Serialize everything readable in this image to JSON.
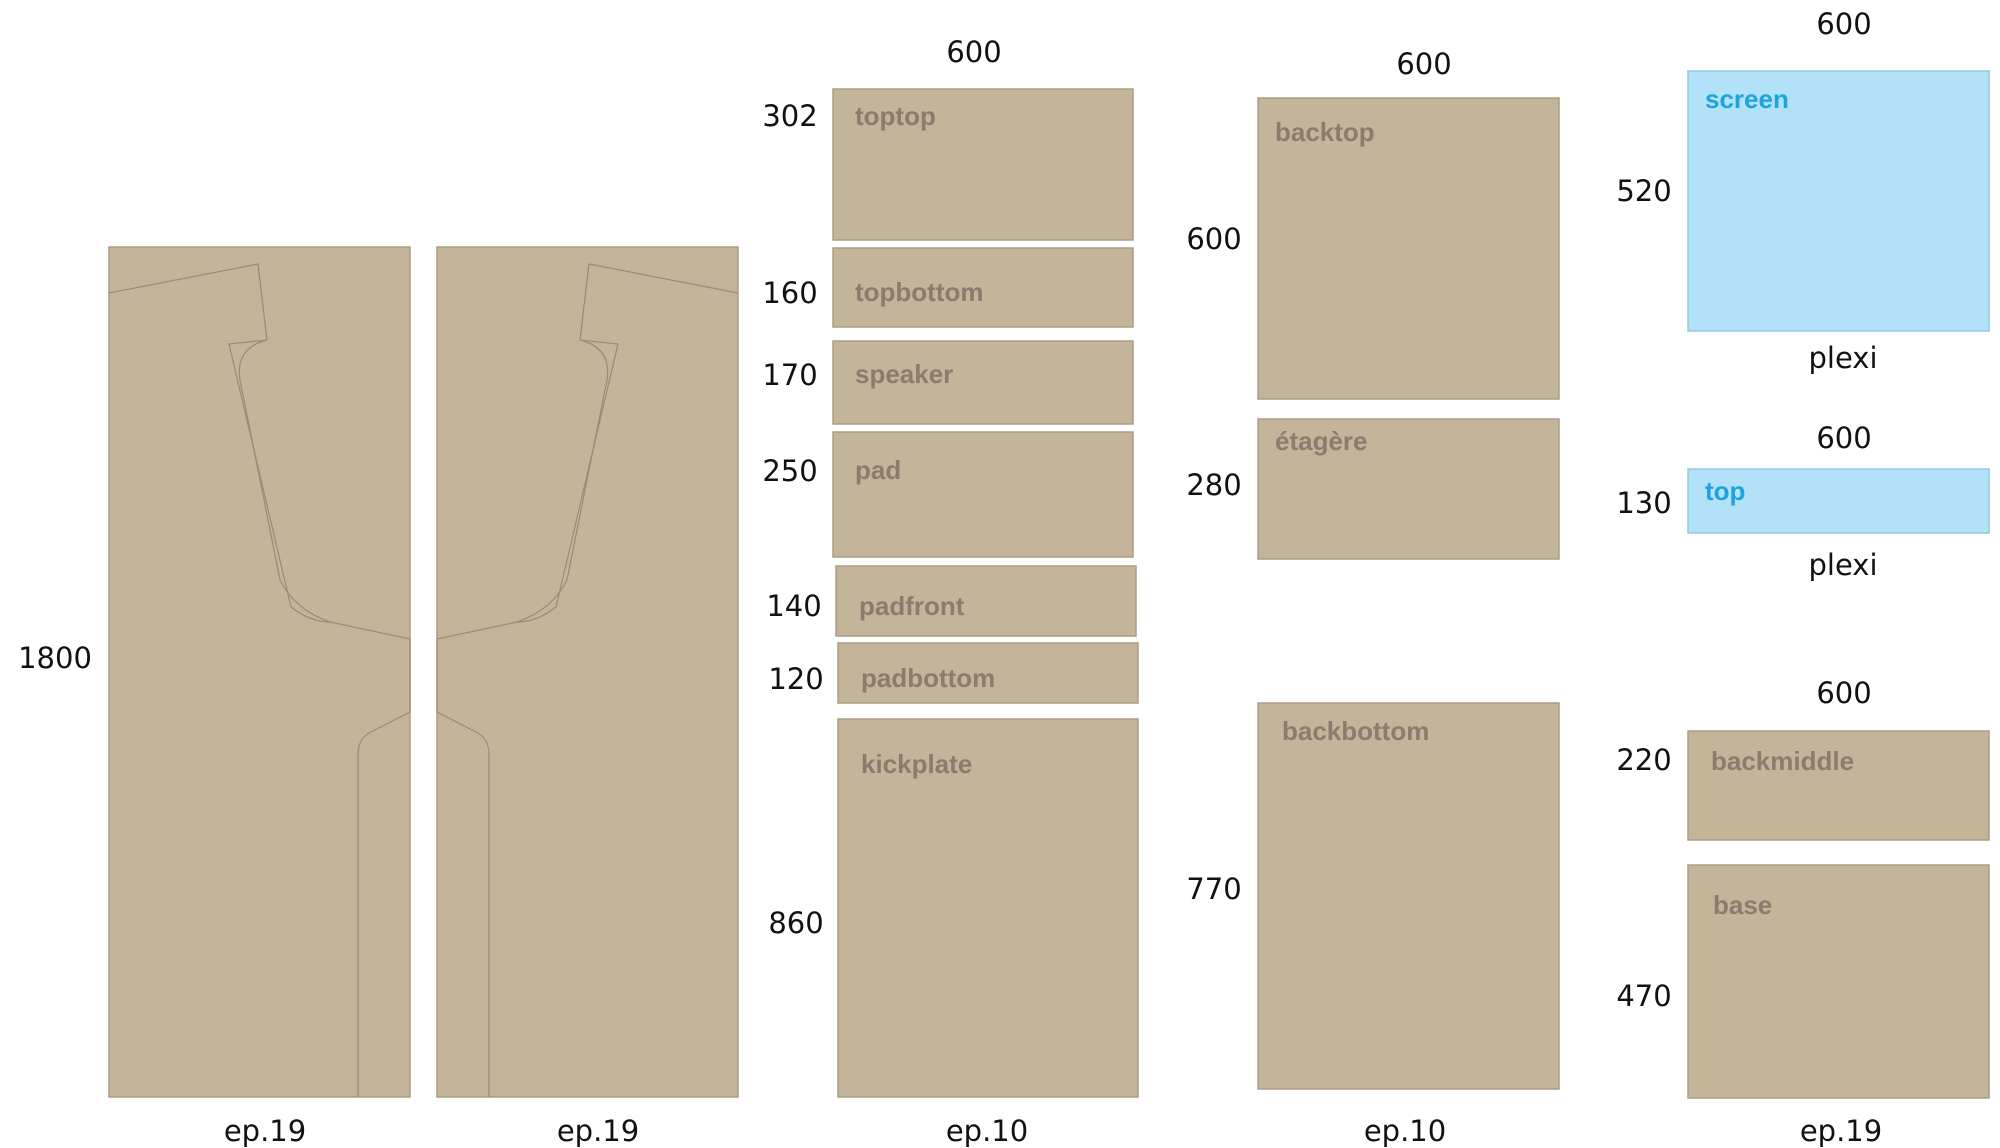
{
  "colors": {
    "wood": "#c3b49a",
    "wood_stroke": "#ab9d84",
    "wood_label": "#8c7c6e",
    "plexi": "#b3e1f7",
    "plexi_stroke": "#93c9e4",
    "plexi_label": "#1ea4dc",
    "side_line": "#9a8b74"
  },
  "sides": {
    "height_label": "1800",
    "left_thickness": "ep.19",
    "right_thickness": "ep.19"
  },
  "column1": {
    "width_label": "600",
    "thickness": "ep.10",
    "panels": [
      {
        "name": "toptop",
        "height_label": "302"
      },
      {
        "name": "topbottom",
        "height_label": "160"
      },
      {
        "name": "speaker",
        "height_label": "170"
      },
      {
        "name": "pad",
        "height_label": "250"
      },
      {
        "name": "padfront",
        "height_label": "140"
      },
      {
        "name": "padbottom",
        "height_label": "120"
      },
      {
        "name": "kickplate",
        "height_label": "860"
      }
    ]
  },
  "column2": {
    "width_label": "600",
    "thickness": "ep.10",
    "panels": [
      {
        "name": "backtop",
        "height_label": "600"
      },
      {
        "name": "étagère",
        "height_label": "280"
      },
      {
        "name": "backbottom",
        "height_label": "770"
      }
    ]
  },
  "column3": {
    "screen": {
      "width_label": "600",
      "name": "screen",
      "height_label": "520",
      "material": "plexi"
    },
    "top": {
      "width_label": "600",
      "name": "top",
      "height_label": "130",
      "material": "plexi"
    },
    "wood_width_label": "600",
    "wood_panels": [
      {
        "name": "backmiddle",
        "height_label": "220"
      },
      {
        "name": "base",
        "height_label": "470"
      }
    ],
    "thickness": "ep.19"
  }
}
